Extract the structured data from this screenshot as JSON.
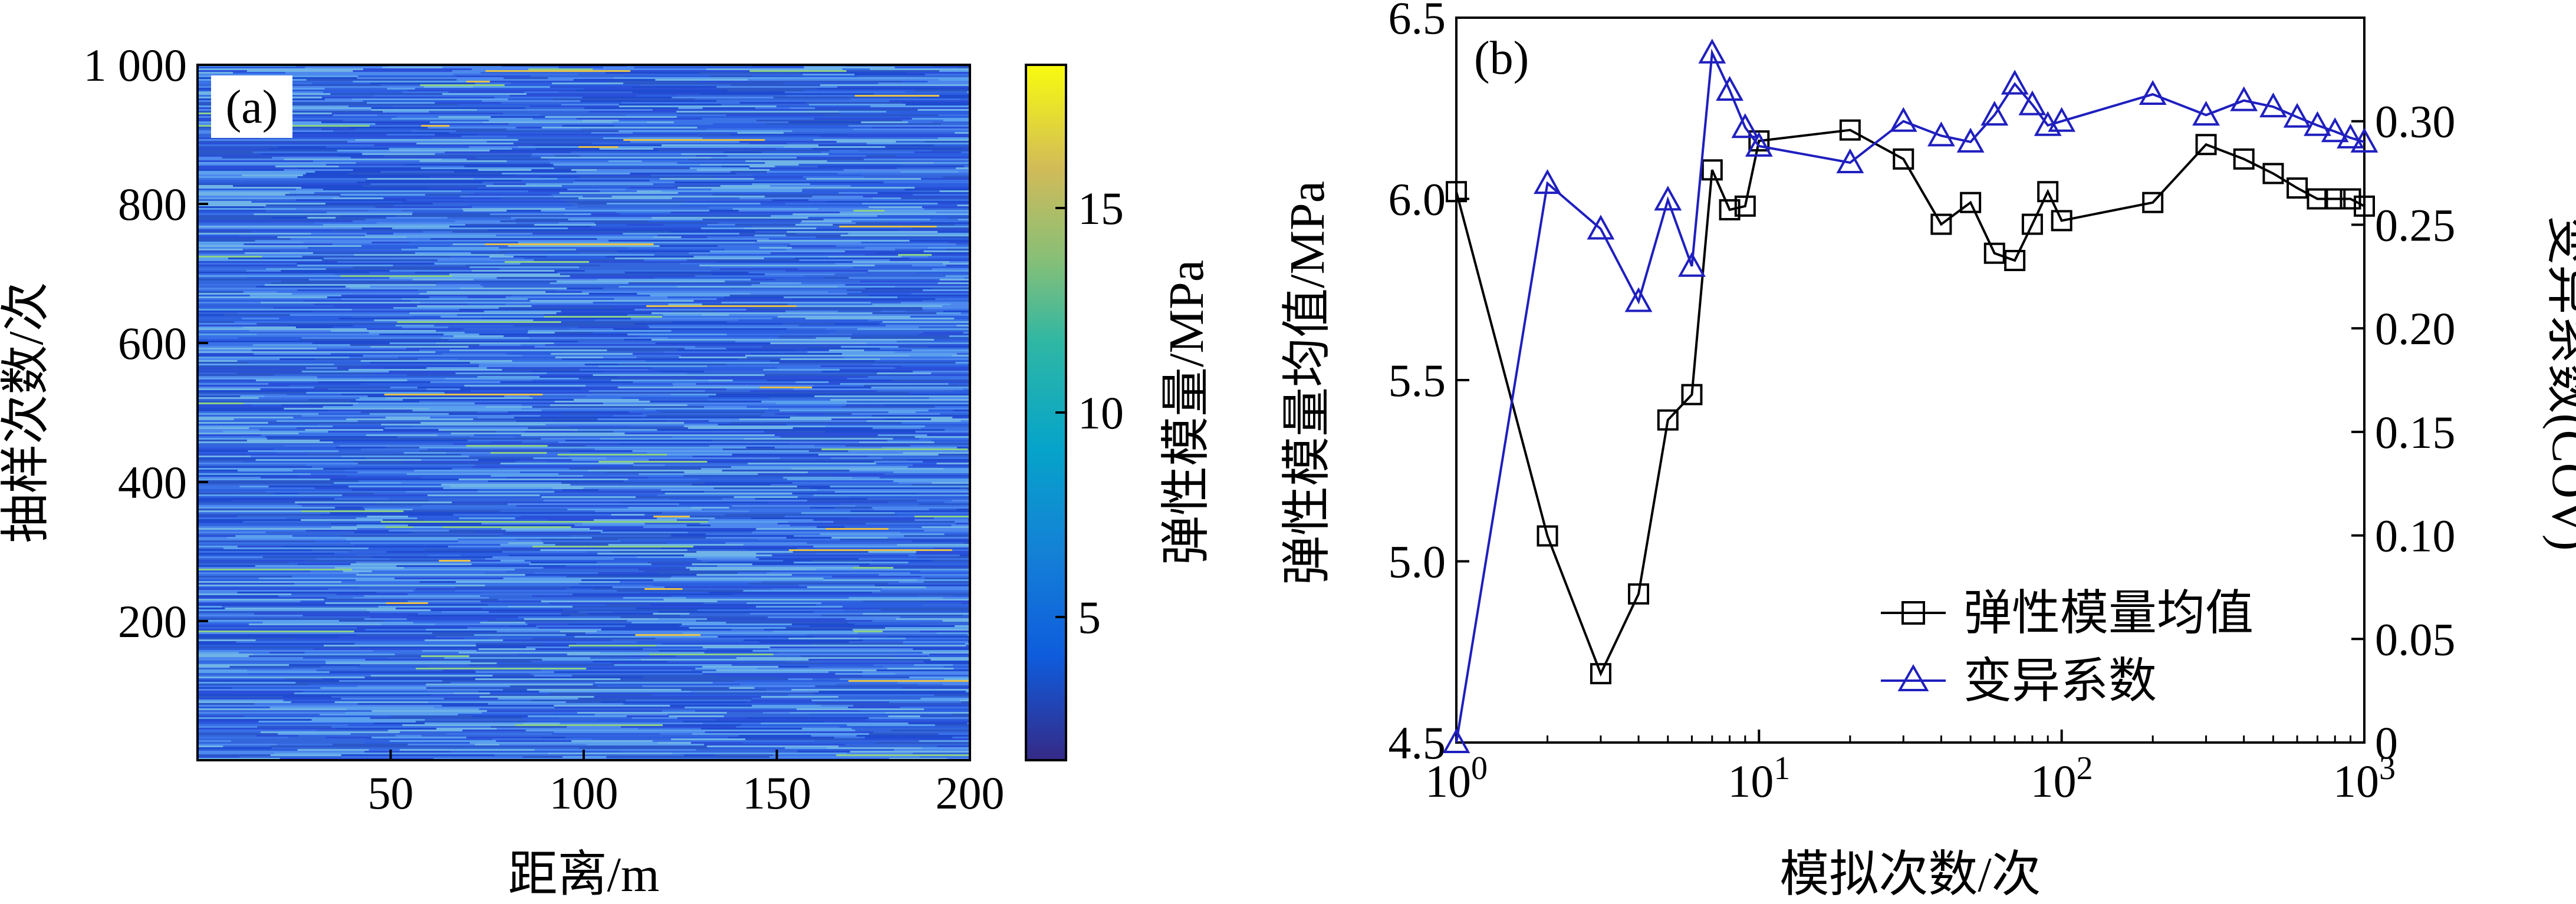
{
  "chart_data": [
    {
      "type": "heatmap",
      "panel_label": "(a)",
      "xlabel": "距离/m",
      "ylabel": "抽样次数/次",
      "xlim": [
        0,
        200
      ],
      "ylim": [
        0,
        1000
      ],
      "xticks": [
        50,
        100,
        150,
        200
      ],
      "xtick_labels": [
        "50",
        "100",
        "150",
        "200"
      ],
      "yticks": [
        200,
        400,
        600,
        800,
        1000
      ],
      "ytick_labels": [
        "200",
        "400",
        "600",
        "800",
        "1 000"
      ],
      "colorbar": {
        "label": "弹性模量/MPa",
        "range": [
          1.5,
          18.5
        ],
        "ticks": [
          5,
          10,
          15
        ],
        "tick_labels": [
          "5",
          "10",
          "15"
        ],
        "colormap": "parula"
      }
    },
    {
      "type": "line",
      "panel_label": "(b)",
      "xlabel": "模拟次数/次",
      "ylabel": "弹性模量均值/MPa",
      "ylabel_right": "变异系数(COV)",
      "xscale": "log",
      "xlim": [
        1,
        1000
      ],
      "ylim": [
        4.5,
        6.5
      ],
      "ylim_right": [
        0,
        0.35
      ],
      "xtick_labels": [
        {
          "base": "10",
          "exp": "0"
        },
        {
          "base": "10",
          "exp": "1"
        },
        {
          "base": "10",
          "exp": "2"
        },
        {
          "base": "10",
          "exp": "3"
        }
      ],
      "yticks": [
        4.5,
        5.0,
        5.5,
        6.0,
        6.5
      ],
      "ytick_labels": [
        "4.5",
        "5.0",
        "5.5",
        "6.0",
        "6.5"
      ],
      "yticks_right": [
        0,
        0.05,
        0.1,
        0.15,
        0.2,
        0.25,
        0.3
      ],
      "ytick_labels_right": [
        "0",
        "0.05",
        "0.10",
        "0.15",
        "0.20",
        "0.25",
        "0.30"
      ],
      "legend_position": "lower-right",
      "series": [
        {
          "name": "弹性模量均值",
          "axis": "left",
          "color": "#000000",
          "marker": "square",
          "x": [
            1,
            2,
            3,
            4,
            5,
            6,
            7,
            8,
            9,
            10,
            20,
            30,
            40,
            50,
            60,
            70,
            80,
            90,
            100,
            200,
            300,
            400,
            500,
            600,
            700,
            800,
            900,
            1000
          ],
          "y": [
            6.02,
            5.07,
            4.69,
            4.91,
            5.39,
            5.46,
            6.08,
            5.97,
            5.98,
            6.16,
            6.19,
            6.11,
            5.93,
            5.99,
            5.85,
            5.83,
            5.93,
            6.02,
            5.94,
            5.99,
            6.15,
            6.11,
            6.07,
            6.03,
            6.0,
            6.0,
            6.0,
            5.98
          ]
        },
        {
          "name": "变异系数",
          "axis": "right",
          "color": "#1f1fbf",
          "marker": "triangle",
          "x": [
            1,
            2,
            3,
            4,
            5,
            6,
            7,
            8,
            9,
            10,
            20,
            30,
            40,
            50,
            60,
            70,
            80,
            90,
            100,
            200,
            300,
            400,
            500,
            600,
            700,
            800,
            900,
            1000
          ],
          "y": [
            0.0,
            0.27,
            0.248,
            0.213,
            0.262,
            0.23,
            0.333,
            0.315,
            0.297,
            0.288,
            0.28,
            0.3,
            0.293,
            0.29,
            0.303,
            0.318,
            0.308,
            0.298,
            0.3,
            0.313,
            0.303,
            0.31,
            0.307,
            0.302,
            0.298,
            0.295,
            0.292,
            0.29
          ]
        }
      ]
    }
  ]
}
